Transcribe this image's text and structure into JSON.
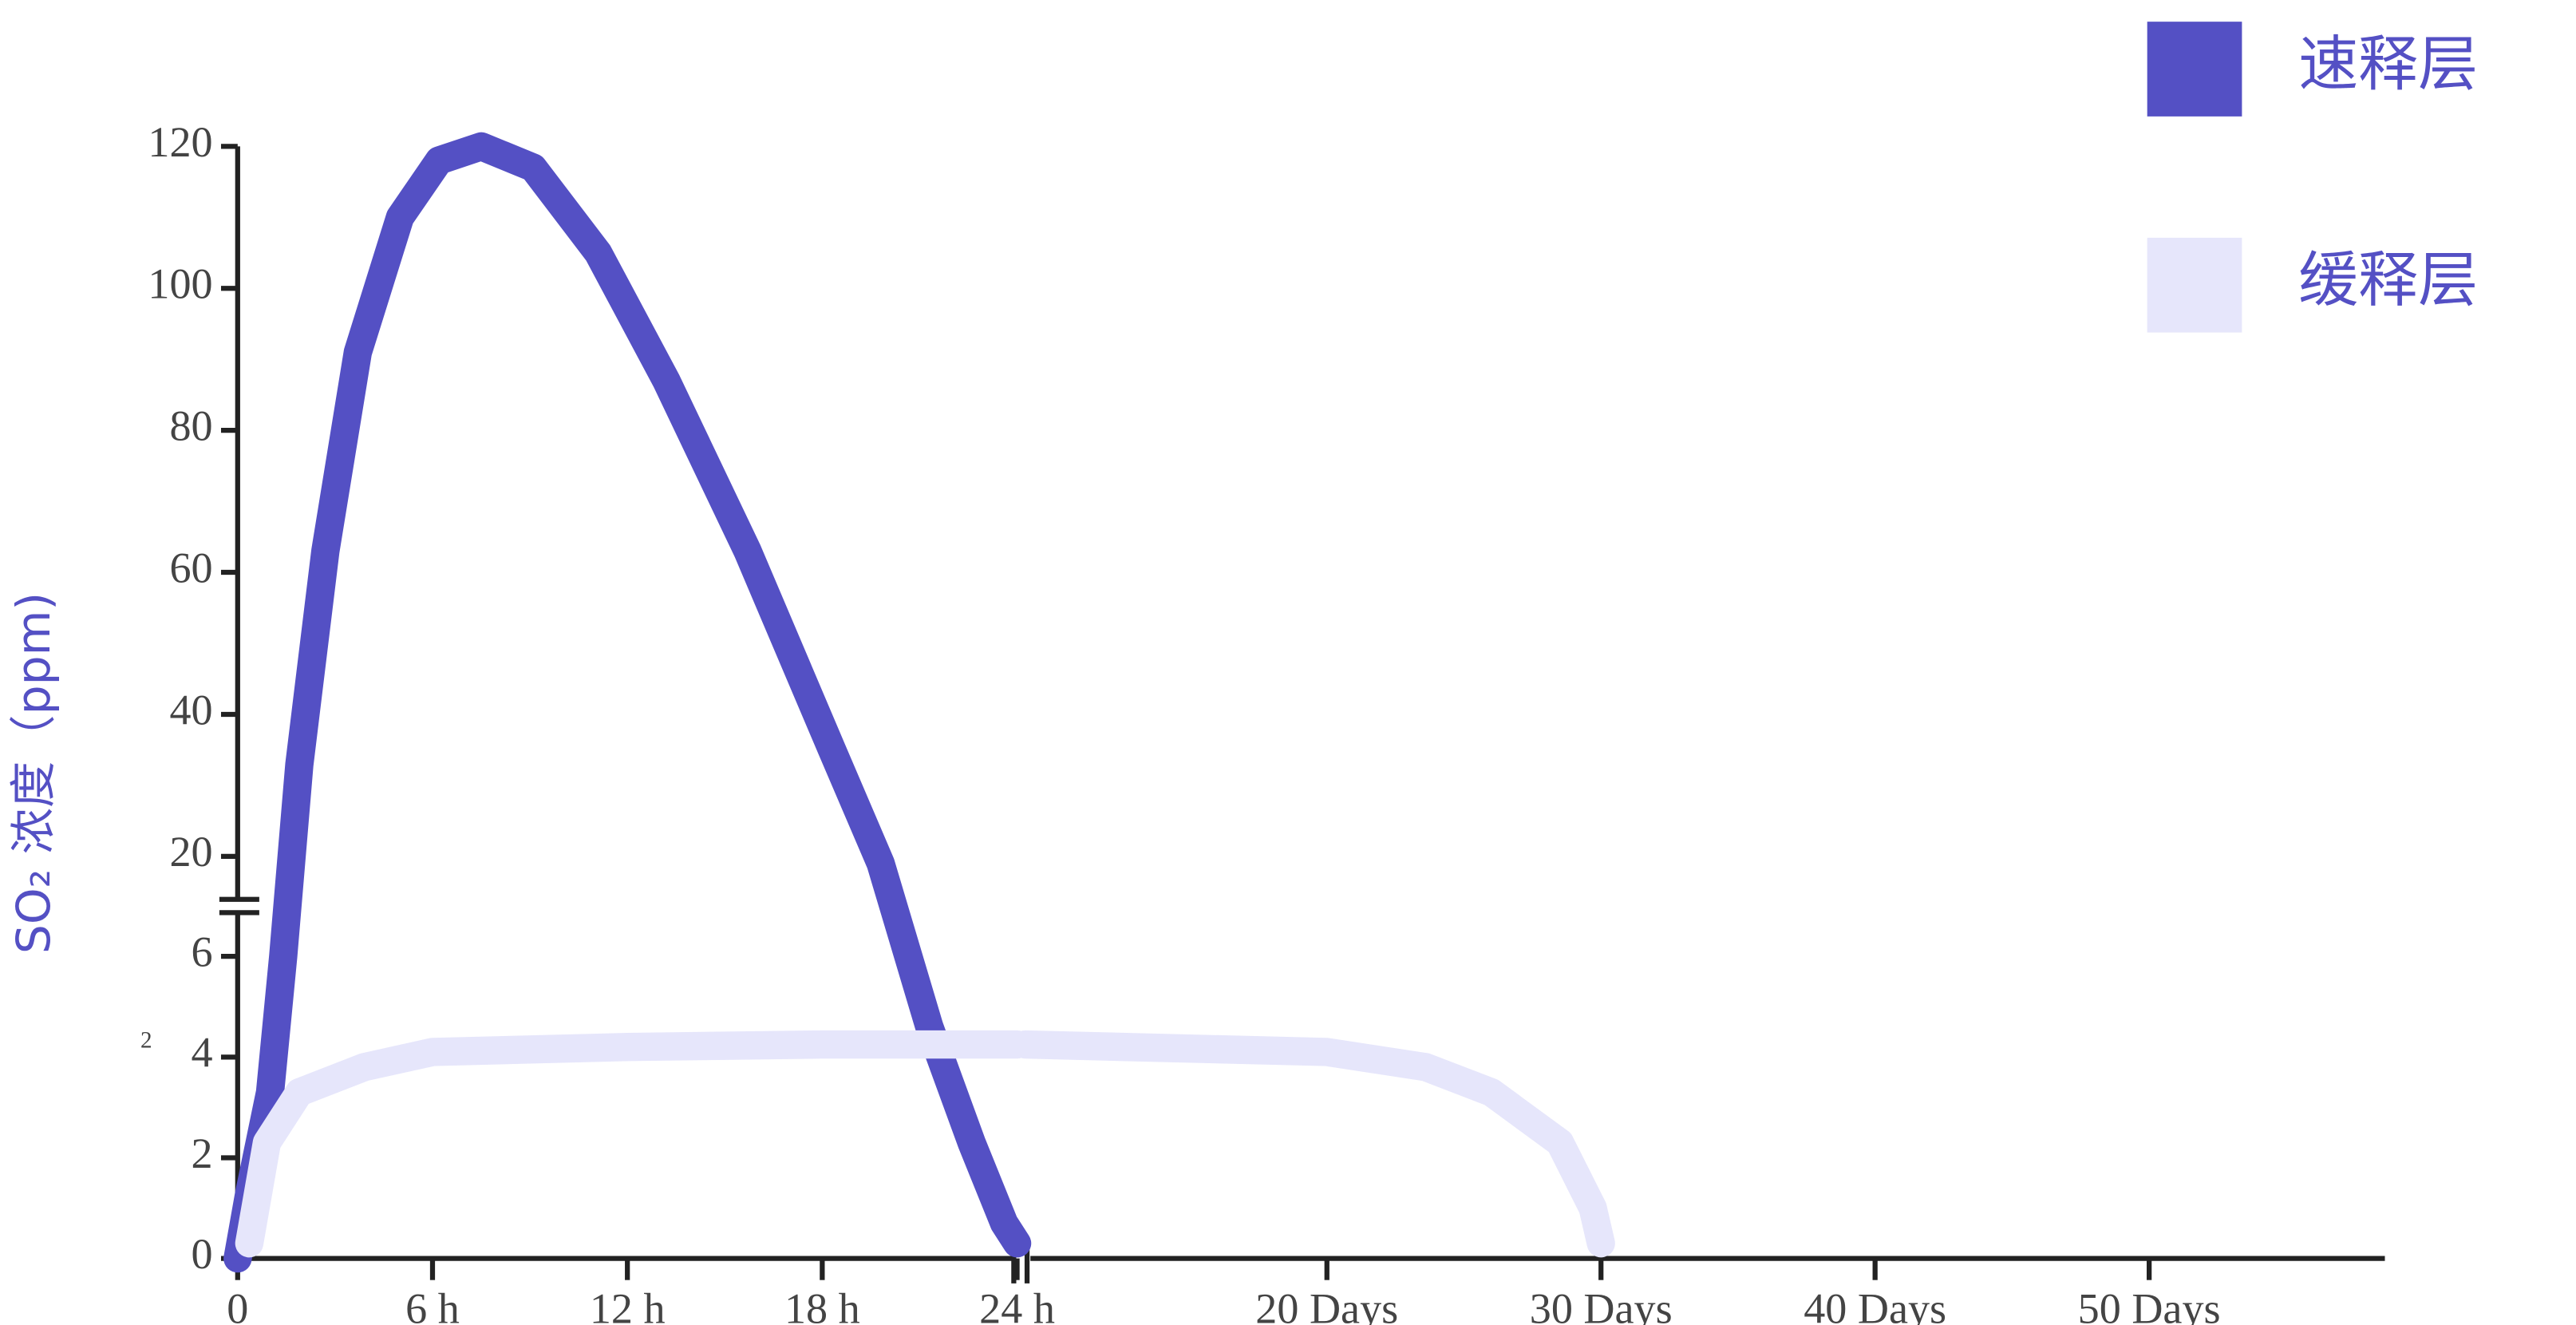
{
  "chart_data": {
    "type": "line",
    "ylabel": "SO₂ 浓度（ppm)",
    "annotation": "2",
    "legend_position": "top-right",
    "y_segments": [
      {
        "ylim": [
          0,
          7
        ],
        "yticks": [
          0,
          2,
          4,
          6
        ]
      },
      {
        "ylim": [
          13,
          120
        ],
        "yticks": [
          20,
          40,
          60,
          80,
          100,
          120
        ]
      }
    ],
    "x_segments": [
      {
        "xlim": [
          0,
          24
        ],
        "xticks": [
          0,
          {
            "value": 6,
            "label": "6 h"
          },
          {
            "value": 12,
            "label": "12 h"
          },
          {
            "value": 18,
            "label": "18 h"
          },
          {
            "value": 24,
            "label": "24 h"
          }
        ]
      },
      {
        "xlim": [
          9,
          58.6
        ],
        "xticks": [
          {
            "value": 20,
            "label": "20 Days"
          },
          {
            "value": 30,
            "label": "30 Days"
          },
          {
            "value": 40,
            "label": "40 Days"
          },
          {
            "value": 50,
            "label": "50 Days"
          }
        ]
      }
    ],
    "series": [
      {
        "name": "速释层",
        "color": "#5450c4",
        "segments": [
          {
            "x": [
              0,
              0.36,
              1,
              1.4,
              1.9,
              2.7,
              3.7,
              5,
              6.2,
              7.5,
              9.1,
              11.1,
              13.2,
              15.7,
              18.3,
              19.8,
              21.3,
              22.6,
              23.6,
              24
            ],
            "values": [
              0,
              1.3,
              3.3,
              6,
              32.9,
              63,
              91,
              110,
              118,
              120,
              117,
              105,
              87,
              63,
              35,
              19,
              4.6,
              2.3,
              0.7,
              0.3
            ]
          }
        ]
      },
      {
        "name": "缓释层",
        "color": "#e6e6fb",
        "segments": [
          {
            "x": [
              0.36,
              0.9,
              1.9,
              3.9,
              6,
              12,
              18,
              24
            ],
            "values": [
              0.3,
              2.3,
              3.3,
              3.8,
              4.1,
              4.2,
              4.25,
              4.25
            ]
          },
          {
            "x": [
              9,
              20,
              23.6,
              26,
              28.5,
              29.7,
              30
            ],
            "values": [
              4.25,
              4.1,
              3.8,
              3.3,
              2.3,
              1,
              0.3
            ]
          }
        ]
      }
    ]
  }
}
